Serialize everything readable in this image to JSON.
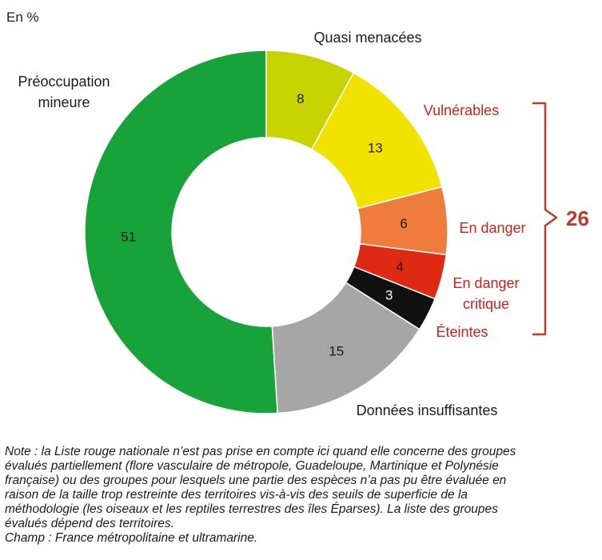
{
  "unit_label": "En %",
  "chart_data": {
    "type": "pie",
    "subtype": "donut",
    "unit": "%",
    "categories": [
      "Préoccupation mineure",
      "Quasi menacées",
      "Vulnérables",
      "En danger",
      "En danger critique",
      "Éteintes",
      "Données insuffisantes"
    ],
    "values": [
      51,
      8,
      13,
      6,
      4,
      3,
      15
    ],
    "colors": [
      "#18a33a",
      "#c8d400",
      "#f2e200",
      "#ef7b3c",
      "#de2a12",
      "#111111",
      "#a6a6a6"
    ],
    "label_lines": [
      [
        "Préoccupation",
        "mineure"
      ],
      [
        "Quasi menacées"
      ],
      [
        "Vulnérables"
      ],
      [
        "En danger"
      ],
      [
        "En danger",
        "critique"
      ],
      [
        "Éteintes"
      ],
      [
        "Données insuffisantes"
      ]
    ],
    "label_colors": [
      "#1a1a1a",
      "#1a1a1a",
      "#d0201a",
      "#d0201a",
      "#d0201a",
      "#d0201a",
      "#1a1a1a"
    ],
    "value_text_colors": [
      "#1a1a1a",
      "#1a1a1a",
      "#1a1a1a",
      "#1a1a1a",
      "#1a1a1a",
      "#ffffff",
      "#1a1a1a"
    ],
    "bracket": {
      "label": "26",
      "color": "#c0392b",
      "covers": [
        "Vulnérables",
        "En danger",
        "En danger critique",
        "Éteintes"
      ]
    }
  },
  "note_lines": [
    "Note : la Liste rouge nationale n’est pas prise en compte ici quand elle concerne des groupes",
    "évalués partiellement (flore vasculaire de métropole, Guadeloupe, Martinique et Polynésie",
    "française) ou des groupes pour lesquels une partie des espèces n’a pas pu être évaluée en",
    "raison de la taille trop restreinte des territoires vis-à-vis des seuils de superficie de la",
    "méthodologie (les oiseaux et les reptiles terrestres des îles Éparses). La liste des groupes",
    "évalués dépend des territoires.",
    "Champ : France métropolitaine et ultramarine."
  ]
}
